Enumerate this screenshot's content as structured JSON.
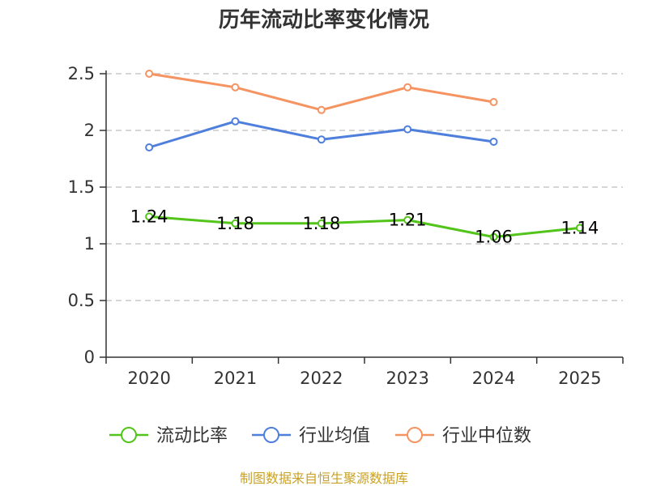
{
  "colors": {
    "series": [
      "#52c41a",
      "#4f7fdc",
      "#f59361"
    ],
    "grid": "#c8c8c8",
    "axis": "#333333",
    "source": "#c9a227"
  },
  "source_text": "制图数据来自恒生聚源数据库",
  "chart_data": {
    "type": "line",
    "title": "历年流动比率变化情况",
    "categories": [
      "2020",
      "2021",
      "2022",
      "2023",
      "2024",
      "2025"
    ],
    "ylim": [
      0,
      2.5
    ],
    "yticks": [
      0,
      0.5,
      1,
      1.5,
      2,
      2.5
    ],
    "ytick_labels": [
      "0",
      "0.5",
      "1",
      "1.5",
      "2",
      "2.5"
    ],
    "grid": true,
    "legend_position": "bottom",
    "series": [
      {
        "name": "流动比率",
        "values": [
          1.24,
          1.18,
          1.18,
          1.21,
          1.06,
          1.14
        ],
        "labels": [
          "1.24",
          "1.18",
          "1.18",
          "1.21",
          "1.06",
          "1.14"
        ]
      },
      {
        "name": "行业均值",
        "values": [
          1.85,
          2.08,
          1.92,
          2.01,
          1.9,
          null
        ]
      },
      {
        "name": "行业中位数",
        "values": [
          2.5,
          2.38,
          2.18,
          2.38,
          2.25,
          null
        ]
      }
    ]
  }
}
